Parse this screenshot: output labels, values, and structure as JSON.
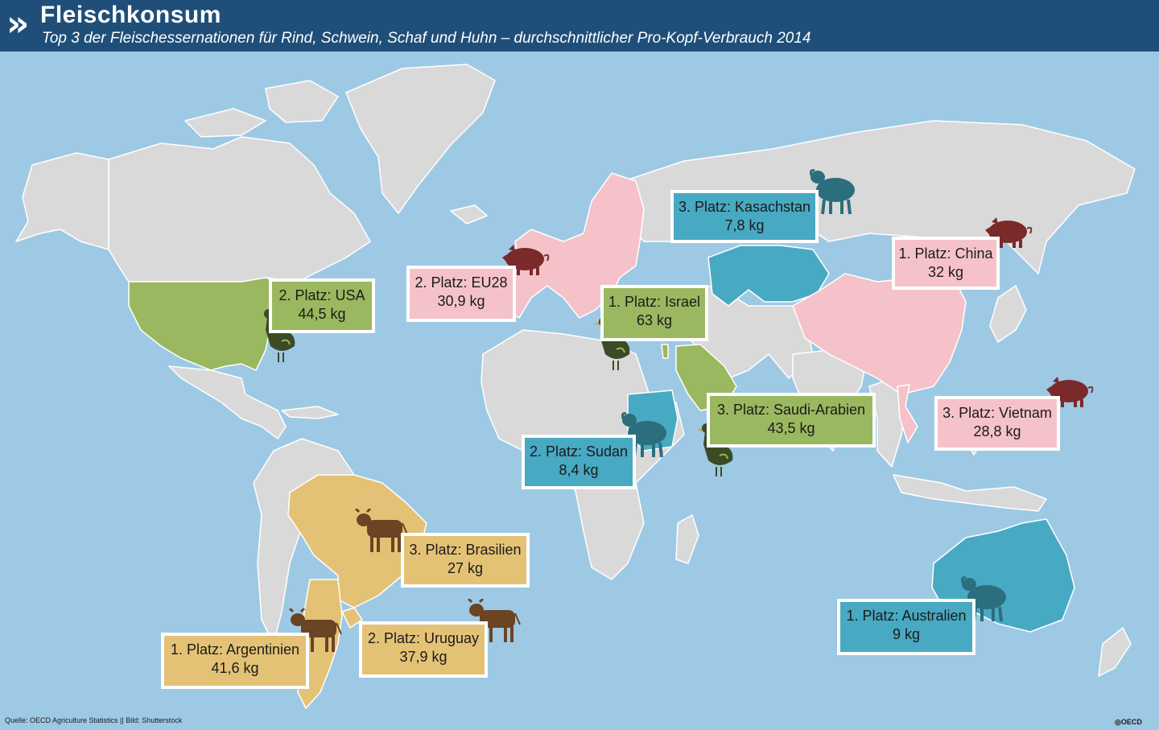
{
  "header": {
    "title": "Fleischkonsum",
    "subtitle": "Top 3 der Fleischessernationen für Rind, Schwein, Schaf und Huhn – durchschnittlicher Pro-Kopf-Verbrauch 2014"
  },
  "colors": {
    "ocean": "#9ec9e5",
    "land": "#d9d9d9",
    "header": "#1f4f79",
    "beef": "#e4c275",
    "pork": "#f5c2c9",
    "sheep": "#48a9c3",
    "chicken": "#9ab85f",
    "beef_icon": "#6b4424",
    "pork_icon": "#7a2a2a",
    "sheep_icon": "#2b6e7d",
    "chicken_icon": "#3b4b25"
  },
  "labels": [
    {
      "id": "usa",
      "meat": "chicken",
      "rank": "2. Platz: USA",
      "value": "44,5 kg"
    },
    {
      "id": "eu28",
      "meat": "pork",
      "rank": "2. Platz: EU28",
      "value": "30,9 kg"
    },
    {
      "id": "israel",
      "meat": "chicken",
      "rank": "1. Platz: Israel",
      "value": "63 kg"
    },
    {
      "id": "kasachstan",
      "meat": "sheep",
      "rank": "3. Platz: Kasachstan",
      "value": "7,8 kg"
    },
    {
      "id": "china",
      "meat": "pork",
      "rank": "1. Platz: China",
      "value": "32 kg"
    },
    {
      "id": "saudi",
      "meat": "chicken",
      "rank": "3. Platz: Saudi-Arabien",
      "value": "43,5 kg"
    },
    {
      "id": "vietnam",
      "meat": "pork",
      "rank": "3. Platz: Vietnam",
      "value": "28,8 kg"
    },
    {
      "id": "sudan",
      "meat": "sheep",
      "rank": "2. Platz: Sudan",
      "value": "8,4 kg"
    },
    {
      "id": "brasilien",
      "meat": "beef",
      "rank": "3. Platz: Brasilien",
      "value": "27 kg"
    },
    {
      "id": "uruguay",
      "meat": "beef",
      "rank": "2. Platz: Uruguay",
      "value": "37,9 kg"
    },
    {
      "id": "argentinien",
      "meat": "beef",
      "rank": "1. Platz: Argentinien",
      "value": "41,6 kg"
    },
    {
      "id": "australien",
      "meat": "sheep",
      "rank": "1. Platz: Australien",
      "value": "9 kg"
    }
  ],
  "footer": {
    "source": "Quelle: OECD Agriculture Statistics || Bild: Shutterstock",
    "logo": "OECD"
  }
}
